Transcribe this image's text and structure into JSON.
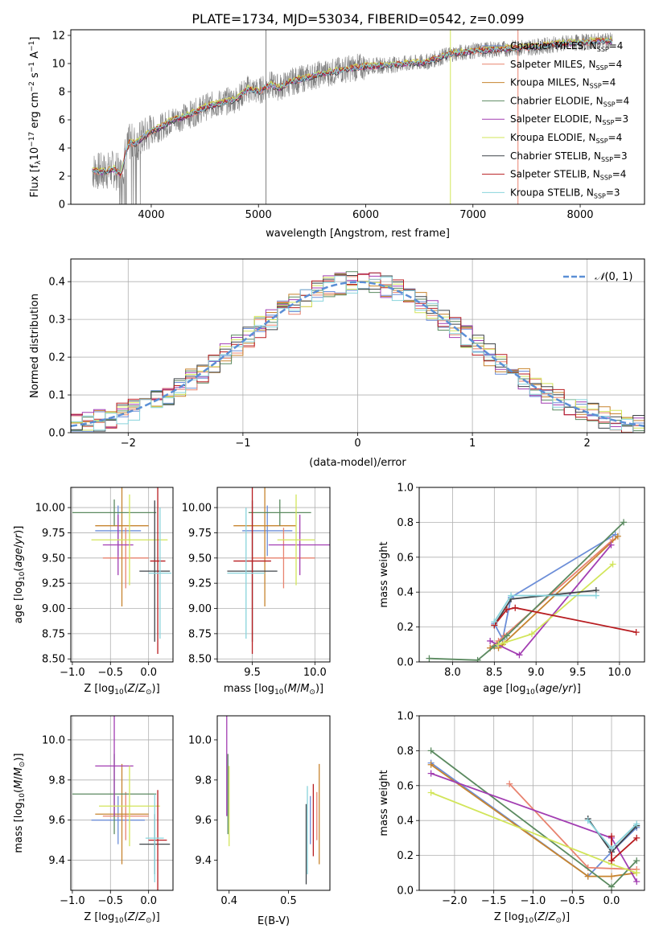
{
  "figure_title": "PLATE=1734, MJD=53034, FIBERID=0542, z=0.099",
  "models": [
    {
      "name": "Chabrier MILES",
      "nssp": "4",
      "color": "#6c8ed8"
    },
    {
      "name": "Salpeter MILES",
      "nssp": "4",
      "color": "#e8836f"
    },
    {
      "name": "Kroupa MILES",
      "nssp": "4",
      "color": "#c7842f"
    },
    {
      "name": "Chabrier ELODIE",
      "nssp": "4",
      "color": "#5b8a60"
    },
    {
      "name": "Salpeter ELODIE",
      "nssp": "3",
      "color": "#a23db2"
    },
    {
      "name": "Kroupa ELODIE",
      "nssp": "4",
      "color": "#d2e55a"
    },
    {
      "name": "Chabrier STELIB",
      "nssp": "3",
      "color": "#3f4449"
    },
    {
      "name": "Salpeter STELIB",
      "nssp": "4",
      "color": "#b81d21"
    },
    {
      "name": "Kroupa STELIB",
      "nssp": "3",
      "color": "#89d4dc"
    }
  ],
  "nssp_label": "N",
  "nssp_sub": "SSP",
  "chart_data": [
    {
      "id": "spectrum",
      "type": "line",
      "xlabel": "wavelength [Angstrom, rest frame]",
      "ylabel": "Flux [f",
      "xlim": [
        3250,
        8600
      ],
      "ylim": [
        0,
        12.4
      ],
      "xticks": [
        4000,
        5000,
        6000,
        7000,
        8000
      ],
      "yticks": [
        0,
        2,
        4,
        6,
        8,
        10,
        12
      ],
      "grid": false,
      "legend": "top-right",
      "data_color": "#808080",
      "continuum": {
        "x": [
          3450,
          3550,
          3650,
          3720,
          3760,
          3800,
          3850,
          3900,
          3950,
          4000,
          4100,
          4200,
          4300,
          4400,
          4500,
          4600,
          4700,
          4800,
          4900,
          5000,
          5100,
          5200,
          5300,
          5400,
          5500,
          5600,
          5700,
          5800,
          5900,
          6000,
          6200,
          6400,
          6560,
          6600,
          6800,
          7000,
          7200,
          7400,
          7600,
          7800,
          8000,
          8200,
          8300
        ],
        "y": [
          2.4,
          2.3,
          2.5,
          2.1,
          3.6,
          4.4,
          4.3,
          4.6,
          4.9,
          5.2,
          5.5,
          6.0,
          6.2,
          6.5,
          6.9,
          7.1,
          7.3,
          7.5,
          8.2,
          8.0,
          8.5,
          8.3,
          8.7,
          8.9,
          9.1,
          9.3,
          9.4,
          9.6,
          9.7,
          9.8,
          9.9,
          10.0,
          10.1,
          10.2,
          10.7,
          10.9,
          11.0,
          11.1,
          11.2,
          11.4,
          11.5,
          11.6,
          11.6
        ]
      },
      "model_offsets": [
        0.05,
        -0.08,
        0.1,
        0.0,
        -0.05,
        0.12,
        -0.1,
        0.03,
        0.0
      ]
    },
    {
      "id": "residuals",
      "type": "histogram",
      "xlabel": "(data-model)/error",
      "ylabel": "Normed distribution",
      "xlim": [
        -2.5,
        2.5
      ],
      "ylim": [
        0,
        0.46
      ],
      "xticks": [
        -2,
        -1,
        0,
        1,
        2
      ],
      "yticks": [
        0.0,
        0.1,
        0.2,
        0.3,
        0.4
      ],
      "grid": true,
      "legend": "top-right",
      "reference_label": "N(0,1)",
      "reference_color": "#5b8fd6",
      "bin_width": 0.1,
      "hist_min": -2.5
    },
    {
      "id": "age_vs_Z",
      "type": "scatter",
      "xlabel": "Z [log10(Z/Z⊙)]",
      "ylabel": "age  [log10(age/yr)]",
      "xlim": [
        -1.02,
        0.32
      ],
      "ylim": [
        8.47,
        10.2
      ],
      "xticks": [
        -1.0,
        -0.5,
        0.0
      ],
      "yticks": [
        8.5,
        8.75,
        9.0,
        9.25,
        9.5,
        9.75,
        10.0
      ],
      "grid": true,
      "points": [
        {
          "x": -0.4,
          "xerr": 0.3,
          "y": 9.77,
          "yerr": 0.25
        },
        {
          "x": -0.3,
          "xerr": 0.3,
          "y": 9.5,
          "yerr": 0.3
        },
        {
          "x": -0.35,
          "xerr": 0.35,
          "y": 9.82,
          "yerr": 0.8
        },
        {
          "x": -0.45,
          "xerr": 0.55,
          "y": 9.95,
          "yerr": 0.13
        },
        {
          "x": -0.4,
          "xerr": 0.2,
          "y": 9.63,
          "yerr": 0.3
        },
        {
          "x": -0.25,
          "xerr": 0.5,
          "y": 9.68,
          "yerr": 0.45
        },
        {
          "x": 0.08,
          "xerr": 0.2,
          "y": 9.37,
          "yerr": 0.7
        },
        {
          "x": 0.12,
          "xerr": 0.1,
          "y": 9.47,
          "yerr": 0.92
        },
        {
          "x": 0.15,
          "xerr": 0.15,
          "y": 9.35,
          "yerr": 0.65
        }
      ]
    },
    {
      "id": "age_vs_mass",
      "type": "scatter",
      "xlabel": "mass [log10(M/M⊙)]",
      "ylabel": "",
      "xlim": [
        9.22,
        10.12
      ],
      "ylim": [
        8.47,
        10.2
      ],
      "xticks": [
        9.5,
        10.0
      ],
      "yticks": [
        8.5,
        8.75,
        9.0,
        9.25,
        9.5,
        9.75,
        10.0
      ],
      "grid": true,
      "points": [
        {
          "x": 9.62,
          "xerr": 0.2,
          "y": 9.77,
          "yerr": 0.25
        },
        {
          "x": 9.75,
          "xerr": 0.25,
          "y": 9.5,
          "yerr": 0.3
        },
        {
          "x": 9.6,
          "xerr": 0.25,
          "y": 9.82,
          "yerr": 0.8
        },
        {
          "x": 9.72,
          "xerr": 0.25,
          "y": 9.95,
          "yerr": 0.13
        },
        {
          "x": 9.88,
          "xerr": 0.25,
          "y": 9.63,
          "yerr": 0.3
        },
        {
          "x": 9.85,
          "xerr": 0.15,
          "y": 9.68,
          "yerr": 0.45
        },
        {
          "x": 9.5,
          "xerr": 0.2,
          "y": 9.37,
          "yerr": 0.7
        },
        {
          "x": 9.5,
          "xerr": 0.15,
          "y": 9.47,
          "yerr": 0.92
        },
        {
          "x": 9.45,
          "xerr": 0.15,
          "y": 9.35,
          "yerr": 0.65
        }
      ]
    },
    {
      "id": "weight_vs_age",
      "type": "line",
      "xlabel": "age  [log10(age/yr)]",
      "ylabel": "mass weight",
      "xlim": [
        7.6,
        10.3
      ],
      "ylim": [
        0,
        1.0
      ],
      "xticks": [
        8.0,
        8.5,
        9.0,
        9.5,
        10.0
      ],
      "yticks": [
        0.0,
        0.2,
        0.4,
        0.6,
        0.8,
        1.0
      ],
      "grid": true,
      "series": [
        {
          "x": [
            8.5,
            8.6,
            8.7,
            9.95
          ],
          "y": [
            0.22,
            0.13,
            0.37,
            0.73
          ]
        },
        {
          "x": [
            8.45,
            8.55,
            8.62,
            9.92
          ],
          "y": [
            0.08,
            0.12,
            0.15,
            0.7
          ]
        },
        {
          "x": [
            8.45,
            8.55,
            8.6,
            9.98
          ],
          "y": [
            0.08,
            0.08,
            0.1,
            0.72
          ]
        },
        {
          "x": [
            7.72,
            8.3,
            8.5,
            8.65,
            10.05
          ],
          "y": [
            0.02,
            0.01,
            0.09,
            0.15,
            0.8
          ]
        },
        {
          "x": [
            8.45,
            8.8,
            9.9
          ],
          "y": [
            0.12,
            0.04,
            0.67
          ]
        },
        {
          "x": [
            8.55,
            8.62,
            8.95,
            9.92
          ],
          "y": [
            0.1,
            0.11,
            0.16,
            0.56
          ]
        },
        {
          "x": [
            8.5,
            8.7,
            9.72
          ],
          "y": [
            0.21,
            0.36,
            0.41
          ]
        },
        {
          "x": [
            8.5,
            8.65,
            8.75,
            10.2
          ],
          "y": [
            0.21,
            0.3,
            0.31,
            0.17
          ]
        },
        {
          "x": [
            8.5,
            8.7,
            9.72
          ],
          "y": [
            0.23,
            0.38,
            0.38
          ]
        }
      ]
    },
    {
      "id": "mass_vs_Z",
      "type": "scatter",
      "xlabel": "Z [log10(Z/Z⊙)]",
      "ylabel": "mass [log10(M/M⊙)]",
      "xlim": [
        -1.02,
        0.32
      ],
      "ylim": [
        9.25,
        10.12
      ],
      "xticks": [
        -1.0,
        -0.5,
        0.0
      ],
      "yticks": [
        9.4,
        9.6,
        9.8,
        10.0
      ],
      "grid": true,
      "points": [
        {
          "x": -0.4,
          "xerr": 0.35,
          "y": 9.6,
          "yerr": 0.12
        },
        {
          "x": -0.3,
          "xerr": 0.3,
          "y": 9.62,
          "yerr": 0.12
        },
        {
          "x": -0.35,
          "xerr": 0.35,
          "y": 9.63,
          "yerr": 0.25
        },
        {
          "x": -0.45,
          "xerr": 0.55,
          "y": 9.73,
          "yerr": 0.2
        },
        {
          "x": -0.45,
          "xerr": 0.25,
          "y": 9.87,
          "yerr": 0.25
        },
        {
          "x": -0.25,
          "xerr": 0.4,
          "y": 9.67,
          "yerr": 0.2
        },
        {
          "x": 0.08,
          "xerr": 0.2,
          "y": 9.48,
          "yerr": 0.15
        },
        {
          "x": 0.12,
          "xerr": 0.12,
          "y": 9.5,
          "yerr": 0.25
        },
        {
          "x": 0.08,
          "xerr": 0.12,
          "y": 9.51,
          "yerr": 0.22
        }
      ]
    },
    {
      "id": "mass_vs_ebv",
      "type": "scatter",
      "xlabel": "E(B-V)",
      "ylabel": "",
      "xlim": [
        0.38,
        0.57
      ],
      "ylim": [
        9.25,
        10.12
      ],
      "xticks": [
        0.4,
        0.5
      ],
      "yticks": [
        9.4,
        9.6,
        9.8,
        10.0
      ],
      "grid": false,
      "points": [
        {
          "x": 0.537,
          "y": 9.6,
          "yerr": 0.12
        },
        {
          "x": 0.548,
          "y": 9.62,
          "yerr": 0.12
        },
        {
          "x": 0.552,
          "y": 9.63,
          "yerr": 0.25
        },
        {
          "x": 0.398,
          "y": 9.73,
          "yerr": 0.2
        },
        {
          "x": 0.396,
          "y": 9.87,
          "yerr": 0.25
        },
        {
          "x": 0.4,
          "y": 9.67,
          "yerr": 0.2
        },
        {
          "x": 0.53,
          "y": 9.48,
          "yerr": 0.2
        },
        {
          "x": 0.542,
          "y": 9.6,
          "yerr": 0.18
        },
        {
          "x": 0.532,
          "y": 9.55,
          "yerr": 0.22
        }
      ]
    },
    {
      "id": "weight_vs_Z",
      "type": "line",
      "xlabel": "Z [log10(Z/Z⊙)]",
      "ylabel": "mass weight",
      "xlim": [
        -2.45,
        0.42
      ],
      "ylim": [
        0,
        1.0
      ],
      "xticks": [
        -2.0,
        -1.5,
        -1.0,
        -0.5,
        0.0
      ],
      "yticks": [
        0.0,
        0.2,
        0.4,
        0.6,
        0.8,
        1.0
      ],
      "grid": true,
      "series": [
        {
          "x": [
            -2.3,
            -0.3,
            0.0,
            0.32
          ],
          "y": [
            0.73,
            0.08,
            0.22,
            0.36
          ]
        },
        {
          "x": [
            -1.3,
            -0.3,
            0.32
          ],
          "y": [
            0.61,
            0.13,
            0.12
          ]
        },
        {
          "x": [
            -2.3,
            -0.3,
            0.0,
            0.32
          ],
          "y": [
            0.72,
            0.08,
            0.08,
            0.1
          ]
        },
        {
          "x": [
            -2.3,
            0.0,
            0.32
          ],
          "y": [
            0.8,
            0.02,
            0.17
          ]
        },
        {
          "x": [
            -2.3,
            0.0,
            0.32
          ],
          "y": [
            0.67,
            0.3,
            0.05
          ]
        },
        {
          "x": [
            -2.3,
            0.0,
            0.32
          ],
          "y": [
            0.56,
            0.15,
            0.1
          ]
        },
        {
          "x": [
            -0.3,
            0.0,
            0.32
          ],
          "y": [
            0.41,
            0.22,
            0.37
          ]
        },
        {
          "x": [
            0.0,
            0.0,
            0.32
          ],
          "y": [
            0.31,
            0.17,
            0.3
          ]
        },
        {
          "x": [
            -0.3,
            0.0,
            0.32
          ],
          "y": [
            0.4,
            0.24,
            0.38
          ]
        }
      ]
    }
  ]
}
